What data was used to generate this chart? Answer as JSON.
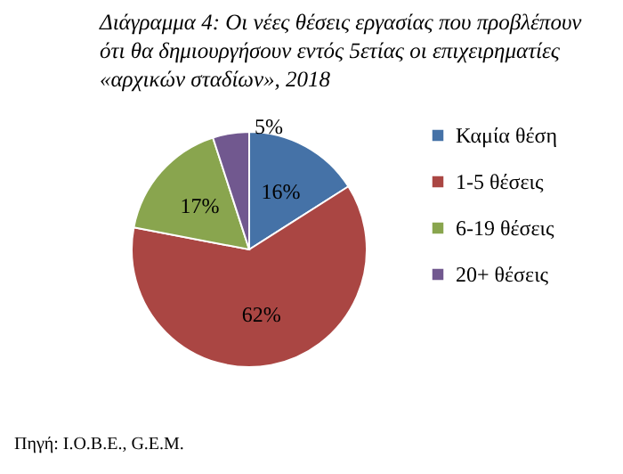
{
  "chart_data": {
    "type": "pie",
    "title": "Διάγραμμα 4: Οι νέες θέσεις εργασίας που προβλέπουν\nότι θα δημιουργήσουν εντός 5ετίας οι επιχειρηματίες\n«αρχικών σταδίων», 2018",
    "categories": [
      "Καμία θέση",
      "1-5 θέσεις",
      "6-19 θέσεις",
      "20+ θέσεις"
    ],
    "values": [
      16,
      62,
      17,
      5
    ],
    "colors": [
      "#4572a7",
      "#aa4643",
      "#89a54e",
      "#71588f"
    ],
    "value_labels": [
      "16%",
      "62%",
      "17%",
      "5%"
    ],
    "legend": "right",
    "annotations": [
      "Πηγή: Ι.Ο.Β.Ε., G.E.M."
    ]
  }
}
